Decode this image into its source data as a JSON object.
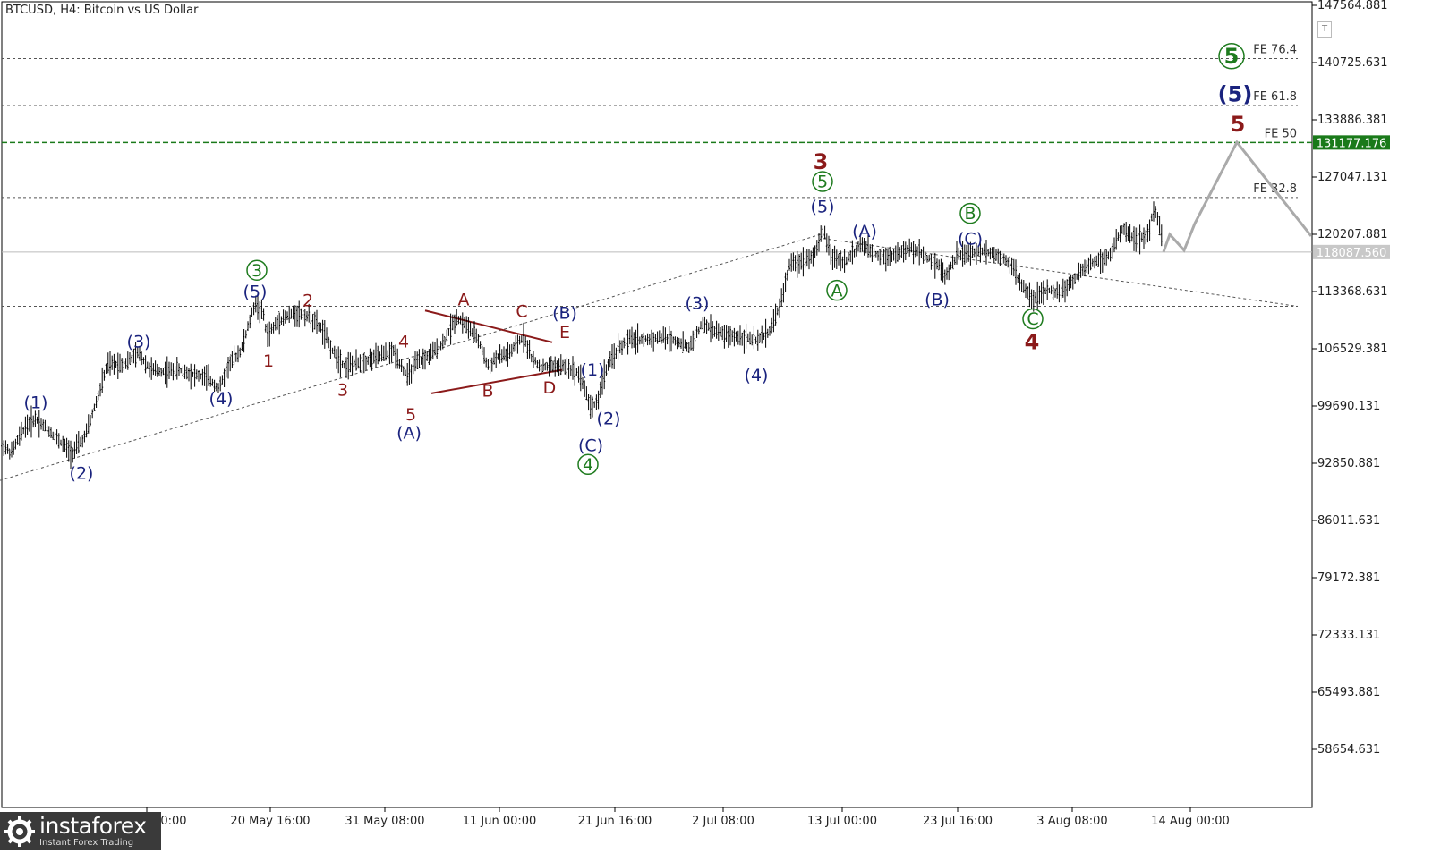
{
  "title": "BTCUSD, H4:  Bitcoin vs US Dollar",
  "logo": {
    "name": "instaforex",
    "tagline": "Instant Forex Trading"
  },
  "colors": {
    "bar": "#000000",
    "grid_dotted": "#555555",
    "fe50_line": "#1a7a1a",
    "fe50_label_bg": "#1a7a1a",
    "price_line": "#bbbbbb",
    "price_label_bg": "#c8c8c8",
    "wave_red": "#8b1a1a",
    "wave_blue": "#1a237e",
    "wave_green": "#1e7b1e",
    "forecast": "#aaaaaa",
    "trendline": "#555555"
  },
  "chart_data": {
    "type": "ohlc",
    "symbol": "BTCUSD",
    "timeframe": "H4",
    "ylim": [
      52500,
      147564.881
    ],
    "y_ticks": [
      "147564.881",
      "140725.631",
      "133886.381",
      "127047.131",
      "120207.881",
      "113368.631",
      "106529.381",
      "99690.131",
      "92850.881",
      "86011.631",
      "79172.381",
      "72333.131",
      "65493.881",
      "58654.631"
    ],
    "x_ticks": [
      "10 May 00:00",
      "20 May 16:00",
      "31 May 08:00",
      "11 Jun 00:00",
      "21 Jun 16:00",
      "2 Jul 08:00",
      "13 Jul 00:00",
      "23 Jul 16:00",
      "3 Aug 08:00",
      "14 Aug 00:00"
    ],
    "current_price": "118087.560",
    "fib_levels": [
      {
        "label": "FE 76.4",
        "price": 141200
      },
      {
        "label": "FE 61.8",
        "price": 135600
      },
      {
        "label": "FE 50",
        "price": 131177.176,
        "value_label": "131177.176",
        "highlight": true
      },
      {
        "label": "FE 32.8",
        "price": 124600
      },
      {
        "label": "",
        "price": 111600
      }
    ],
    "price_path": [
      [
        0,
        95500
      ],
      [
        12,
        94000
      ],
      [
        28,
        97200
      ],
      [
        40,
        98200
      ],
      [
        62,
        96000
      ],
      [
        80,
        94000
      ],
      [
        95,
        96000
      ],
      [
        110,
        101000
      ],
      [
        120,
        104600
      ],
      [
        140,
        104800
      ],
      [
        155,
        106000
      ],
      [
        168,
        104000
      ],
      [
        185,
        103800
      ],
      [
        200,
        104000
      ],
      [
        215,
        103500
      ],
      [
        232,
        103000
      ],
      [
        245,
        101800
      ],
      [
        255,
        104500
      ],
      [
        270,
        106500
      ],
      [
        285,
        112000
      ],
      [
        295,
        110500
      ],
      [
        298,
        108000
      ],
      [
        312,
        110000
      ],
      [
        330,
        110800
      ],
      [
        345,
        110400
      ],
      [
        360,
        108800
      ],
      [
        372,
        106200
      ],
      [
        385,
        104500
      ],
      [
        400,
        104800
      ],
      [
        420,
        105500
      ],
      [
        440,
        106200
      ],
      [
        455,
        103200
      ],
      [
        465,
        104800
      ],
      [
        480,
        105700
      ],
      [
        495,
        107200
      ],
      [
        510,
        110300
      ],
      [
        520,
        109500
      ],
      [
        535,
        107500
      ],
      [
        545,
        104400
      ],
      [
        555,
        105500
      ],
      [
        570,
        106000
      ],
      [
        585,
        108000
      ],
      [
        595,
        105200
      ],
      [
        605,
        104300
      ],
      [
        620,
        104500
      ],
      [
        635,
        104300
      ],
      [
        648,
        103500
      ],
      [
        660,
        99500
      ],
      [
        668,
        100300
      ],
      [
        676,
        103800
      ],
      [
        690,
        106500
      ],
      [
        705,
        107700
      ],
      [
        720,
        107600
      ],
      [
        740,
        107900
      ],
      [
        755,
        107500
      ],
      [
        770,
        106700
      ],
      [
        785,
        109500
      ],
      [
        800,
        108600
      ],
      [
        815,
        108000
      ],
      [
        830,
        108000
      ],
      [
        845,
        107400
      ],
      [
        860,
        108700
      ],
      [
        872,
        111800
      ],
      [
        882,
        116500
      ],
      [
        895,
        117000
      ],
      [
        910,
        117800
      ],
      [
        920,
        120700
      ],
      [
        930,
        117400
      ],
      [
        945,
        117000
      ],
      [
        962,
        119000
      ],
      [
        975,
        118000
      ],
      [
        990,
        117500
      ],
      [
        1005,
        118000
      ],
      [
        1020,
        118500
      ],
      [
        1035,
        117500
      ],
      [
        1050,
        116500
      ],
      [
        1055,
        115000
      ],
      [
        1070,
        117800
      ],
      [
        1085,
        117900
      ],
      [
        1100,
        118300
      ],
      [
        1115,
        117700
      ],
      [
        1130,
        116800
      ],
      [
        1140,
        114200
      ],
      [
        1155,
        112500
      ],
      [
        1170,
        113500
      ],
      [
        1185,
        113200
      ],
      [
        1200,
        114800
      ],
      [
        1215,
        116500
      ],
      [
        1230,
        117200
      ],
      [
        1240,
        117700
      ],
      [
        1255,
        121000
      ],
      [
        1270,
        119500
      ],
      [
        1282,
        120000
      ],
      [
        1290,
        123500
      ],
      [
        1297,
        120300
      ],
      [
        1300,
        118100
      ]
    ],
    "forecast_path": [
      [
        1300,
        118100
      ],
      [
        1307,
        120200
      ],
      [
        1323,
        118300
      ],
      [
        1335,
        121500
      ],
      [
        1382,
        131200
      ],
      [
        1465,
        120000
      ]
    ],
    "trendlines": [
      {
        "name": "lower-trendline",
        "x1": 0,
        "y1": 90800,
        "x2": 920,
        "y2": 120300
      },
      {
        "name": "upper-trendline",
        "x1": 920,
        "y1": 119700,
        "x2": 1450,
        "y2": 111600
      },
      {
        "name": "triangle-upper",
        "x1": 475,
        "y1": 111100,
        "x2": 617,
        "y2": 107300,
        "solid": true
      },
      {
        "name": "triangle-lower",
        "x1": 482,
        "y1": 101200,
        "x2": 628,
        "y2": 104000,
        "solid": true
      }
    ],
    "wave_labels": [
      {
        "text": "(1)",
        "x": 40,
        "price": 99400,
        "color": "blue"
      },
      {
        "text": "(2)",
        "x": 91,
        "price": 91000,
        "color": "blue"
      },
      {
        "text": "(3)",
        "x": 155,
        "price": 106700,
        "color": "blue"
      },
      {
        "text": "(4)",
        "x": 247,
        "price": 99900,
        "color": "blue"
      },
      {
        "text": "(5)",
        "x": 285,
        "price": 112700,
        "color": "blue"
      },
      {
        "text": "3",
        "x": 287,
        "price": 115200,
        "color": "green",
        "circled": true
      },
      {
        "text": "1",
        "x": 300,
        "price": 104400,
        "color": "red"
      },
      {
        "text": "2",
        "x": 344,
        "price": 111600,
        "color": "red"
      },
      {
        "text": "3",
        "x": 383,
        "price": 100900,
        "color": "red"
      },
      {
        "text": "4",
        "x": 451,
        "price": 106700,
        "color": "red"
      },
      {
        "text": "5",
        "x": 459,
        "price": 98000,
        "color": "red"
      },
      {
        "text": "(A)",
        "x": 457,
        "price": 95800,
        "color": "blue"
      },
      {
        "text": "A",
        "x": 518,
        "price": 111700,
        "color": "red"
      },
      {
        "text": "B",
        "x": 545,
        "price": 100800,
        "color": "red"
      },
      {
        "text": "C",
        "x": 583,
        "price": 110300,
        "color": "red"
      },
      {
        "text": "D",
        "x": 614,
        "price": 101200,
        "color": "red"
      },
      {
        "text": "E",
        "x": 631,
        "price": 107800,
        "color": "red"
      },
      {
        "text": "(B)",
        "x": 631,
        "price": 110100,
        "color": "blue"
      },
      {
        "text": "(1)",
        "x": 662,
        "price": 103300,
        "color": "blue"
      },
      {
        "text": "(2)",
        "x": 680,
        "price": 97500,
        "color": "blue"
      },
      {
        "text": "(C)",
        "x": 660,
        "price": 94300,
        "color": "blue"
      },
      {
        "text": "4",
        "x": 657,
        "price": 92000,
        "color": "green",
        "circled": true
      },
      {
        "text": "(3)",
        "x": 779,
        "price": 111300,
        "color": "blue"
      },
      {
        "text": "(4)",
        "x": 845,
        "price": 102700,
        "color": "blue"
      },
      {
        "text": "3",
        "x": 917,
        "price": 128000,
        "color": "red",
        "big": true
      },
      {
        "text": "5",
        "x": 919,
        "price": 125800,
        "color": "green",
        "circled": true
      },
      {
        "text": "(5)",
        "x": 919,
        "price": 122800,
        "color": "blue"
      },
      {
        "text": "(A)",
        "x": 966,
        "price": 119900,
        "color": "blue"
      },
      {
        "text": "A",
        "x": 935,
        "price": 112800,
        "color": "green",
        "circled": true
      },
      {
        "text": "B",
        "x": 1084,
        "price": 122000,
        "color": "green",
        "circled": true
      },
      {
        "text": "(C)",
        "x": 1084,
        "price": 119000,
        "color": "blue"
      },
      {
        "text": "(B)",
        "x": 1047,
        "price": 111700,
        "color": "blue"
      },
      {
        "text": "C",
        "x": 1154,
        "price": 109400,
        "color": "green",
        "circled": true
      },
      {
        "text": "4",
        "x": 1153,
        "price": 106500,
        "color": "red",
        "big": true
      },
      {
        "text": "5",
        "x": 1376,
        "price": 140600,
        "color": "green",
        "circled": true,
        "big": true
      },
      {
        "text": "(5)",
        "x": 1380,
        "price": 136100,
        "color": "blue",
        "big": true
      },
      {
        "text": "5",
        "x": 1383,
        "price": 132500,
        "color": "red",
        "big": true
      }
    ]
  }
}
